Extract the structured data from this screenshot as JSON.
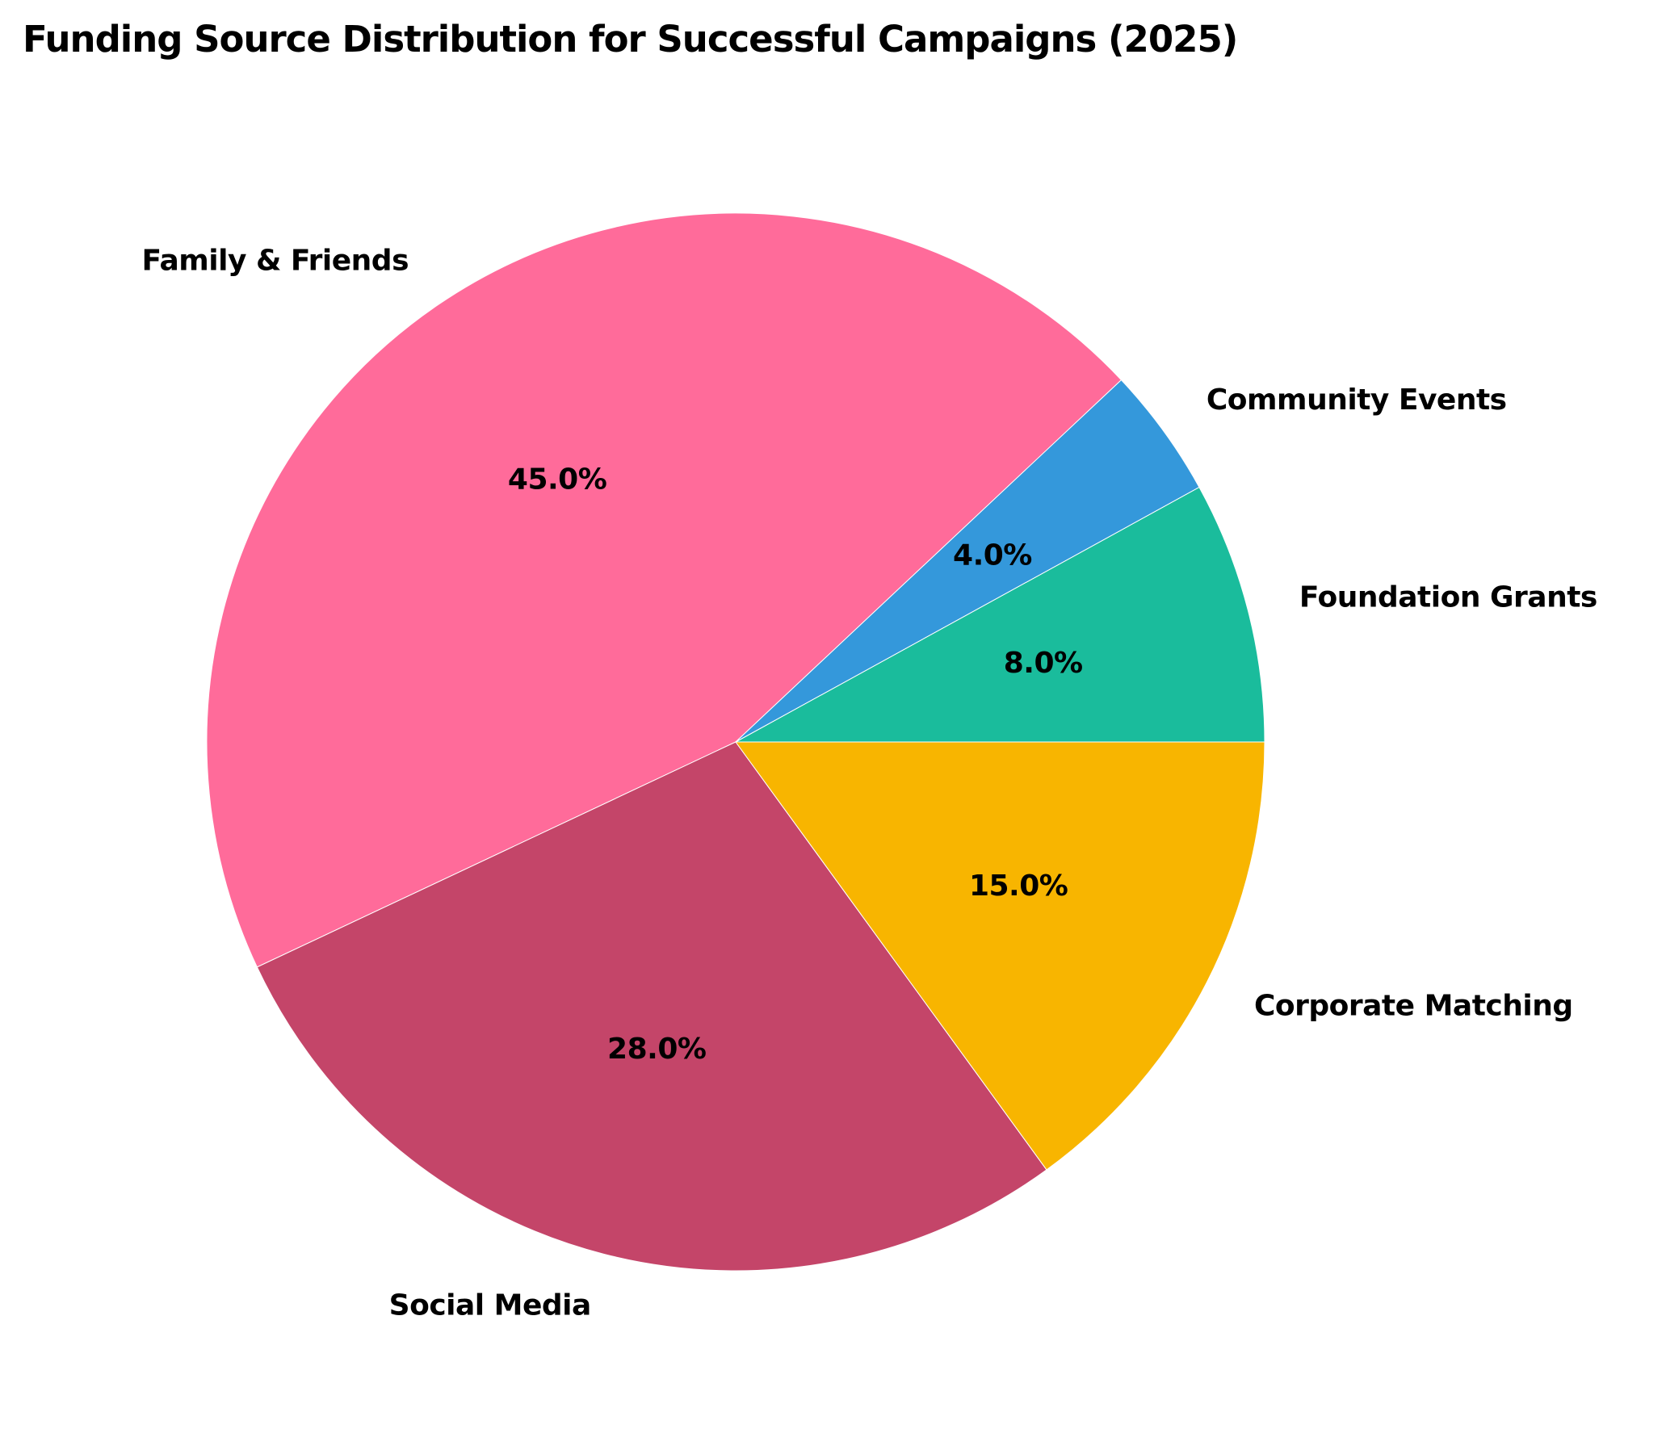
{
  "chart_data": {
    "type": "pie",
    "title": "Funding Source Distribution for Successful Campaigns (2025)",
    "categories": [
      "Family & Friends",
      "Social Media",
      "Corporate Matching",
      "Foundation Grants",
      "Community Events"
    ],
    "values": [
      45.0,
      28.0,
      15.0,
      8.0,
      4.0
    ],
    "value_labels": [
      "45.0%",
      "28.0%",
      "15.0%",
      "8.0%",
      "4.0%"
    ],
    "colors": [
      "#FF6B9A",
      "#C44569",
      "#F8B500",
      "#1ABC9C",
      "#3498DB"
    ],
    "start_angle_deg": 43.2,
    "direction": "counterclockwise",
    "legend": false,
    "xlabel": "",
    "ylabel": ""
  }
}
